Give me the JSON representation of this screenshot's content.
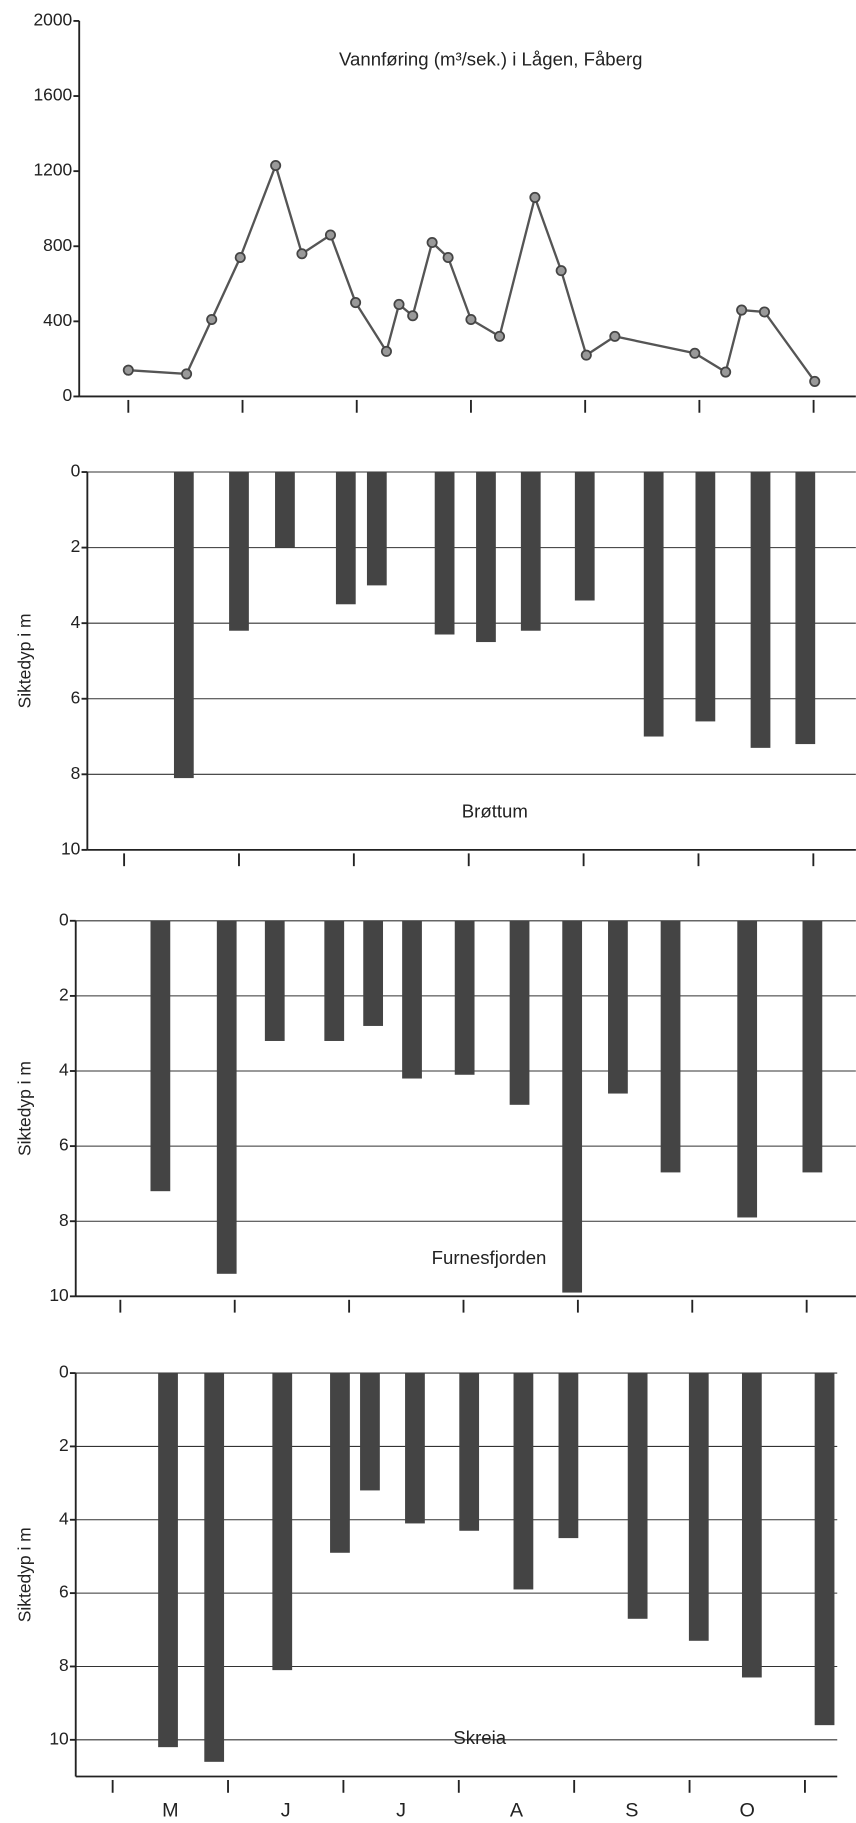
{
  "chart_data": [
    {
      "type": "line",
      "title": "Vannføring (m³/sek.) i Lågen, Fåberg",
      "x": [
        5.0,
        5.51,
        5.73,
        5.98,
        6.29,
        6.52,
        6.77,
        6.99,
        7.26,
        7.37,
        7.49,
        7.66,
        7.8,
        8.0,
        8.25,
        8.56,
        8.79,
        9.01,
        9.26,
        9.96,
        10.23,
        10.37,
        10.57,
        11.01
      ],
      "values": [
        140,
        120,
        410,
        740,
        1230,
        760,
        860,
        500,
        240,
        490,
        430,
        820,
        740,
        410,
        320,
        1060,
        670,
        220,
        320,
        230,
        130,
        460,
        450,
        80
      ],
      "color": "#555555",
      "xlim": [
        4.57,
        11.37
      ],
      "xticks": [
        5,
        6,
        7,
        8,
        9,
        10,
        11
      ],
      "ylim": [
        0,
        2000
      ],
      "yticks": [
        0,
        400,
        800,
        1200,
        1600,
        2000
      ]
    },
    {
      "type": "bar",
      "title": "Brøttum",
      "ylabel": "Siktedyp i m",
      "x": [
        5.52,
        6.0,
        6.4,
        6.93,
        7.2,
        7.79,
        8.15,
        8.54,
        9.01,
        9.61,
        10.06,
        10.54,
        10.93
      ],
      "values": [
        8.1,
        4.2,
        2.0,
        3.5,
        3.0,
        4.3,
        4.5,
        4.2,
        3.4,
        7.0,
        6.6,
        7.3,
        7.2
      ],
      "color": "#444444",
      "y_inverted": true,
      "grid": true,
      "xlim": [
        4.68,
        11.37
      ],
      "xticks": [
        5,
        6,
        7,
        8,
        9,
        10,
        11
      ],
      "ylim": [
        0,
        10
      ],
      "yticks": [
        0,
        2,
        4,
        6,
        8,
        10
      ]
    },
    {
      "type": "bar",
      "title": "Furnesfjorden",
      "ylabel": "Siktedyp i m",
      "x": [
        5.35,
        5.93,
        6.35,
        6.87,
        7.21,
        7.55,
        8.01,
        8.49,
        8.95,
        9.35,
        9.81,
        10.48,
        11.05
      ],
      "values": [
        7.2,
        9.4,
        3.2,
        3.2,
        2.8,
        4.2,
        4.1,
        4.9,
        9.9,
        4.6,
        6.7,
        7.9,
        6.7
      ],
      "color": "#444444",
      "y_inverted": true,
      "grid": true,
      "xlim": [
        4.61,
        11.43
      ],
      "xticks": [
        5,
        6,
        7,
        8,
        9,
        10,
        11
      ],
      "ylim": [
        0,
        10
      ],
      "yticks": [
        0,
        2,
        4,
        6,
        8,
        10
      ]
    },
    {
      "type": "bar",
      "title": "Skreia",
      "ylabel": "Siktedyp i m",
      "x": [
        5.48,
        5.88,
        6.47,
        6.97,
        7.23,
        7.62,
        8.09,
        8.56,
        8.95,
        9.55,
        10.08,
        10.54,
        11.17
      ],
      "values": [
        10.2,
        10.6,
        8.1,
        4.9,
        3.2,
        4.1,
        4.3,
        5.9,
        4.5,
        6.7,
        7.3,
        8.3,
        9.6
      ],
      "color": "#444444",
      "y_inverted": true,
      "grid": true,
      "categories": [
        "M",
        "J",
        "J",
        "A",
        "S",
        "O"
      ],
      "xlim": [
        4.68,
        11.28
      ],
      "xticks": [
        5,
        6,
        7,
        8,
        9,
        10,
        11
      ],
      "ylim": [
        0,
        11
      ],
      "yticks": [
        0,
        2,
        4,
        6,
        8,
        10
      ]
    }
  ]
}
